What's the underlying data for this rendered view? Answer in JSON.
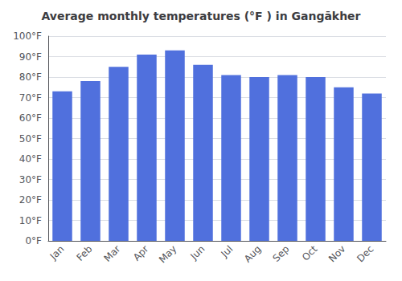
{
  "chart_data": {
    "type": "bar",
    "title": "Average monthly temperatures (°F ) in Gangākher",
    "categories": [
      "Jan",
      "Feb",
      "Mar",
      "Apr",
      "May",
      "Jun",
      "Jul",
      "Aug",
      "Sep",
      "Oct",
      "Nov",
      "Dec"
    ],
    "values": [
      73,
      78,
      85,
      91,
      93,
      86,
      81,
      80,
      81,
      80,
      75,
      72
    ],
    "ylim": [
      0,
      100
    ],
    "yticks": [
      {
        "value": 0,
        "label": "0°F"
      },
      {
        "value": 10,
        "label": "10°F"
      },
      {
        "value": 20,
        "label": "20°F"
      },
      {
        "value": 30,
        "label": "30°F"
      },
      {
        "value": 40,
        "label": "40°F"
      },
      {
        "value": 50,
        "label": "50°F"
      },
      {
        "value": 60,
        "label": "60°F"
      },
      {
        "value": 70,
        "label": "70°F"
      },
      {
        "value": 80,
        "label": "80°F"
      },
      {
        "value": 90,
        "label": "90°F"
      },
      {
        "value": 100,
        "label": "100°F"
      }
    ],
    "grid": true
  }
}
